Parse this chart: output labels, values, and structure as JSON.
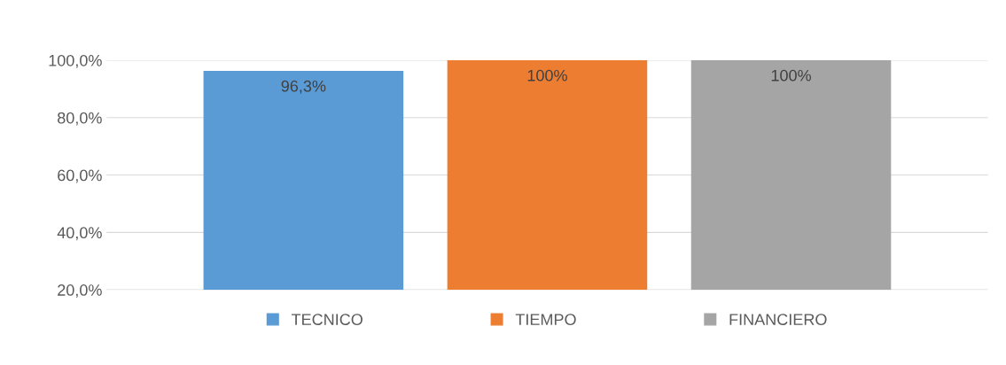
{
  "chart_data": {
    "type": "bar",
    "categories": [
      null
    ],
    "series": [
      {
        "name": "TECNICO",
        "color": "#5b9bd5",
        "values": [
          96.3
        ],
        "value_labels": [
          "96,3%"
        ]
      },
      {
        "name": "TIEMPO",
        "color": "#ed7d31",
        "values": [
          100
        ],
        "value_labels": [
          "100%"
        ]
      },
      {
        "name": "FINANCIERO",
        "color": "#a5a5a5",
        "values": [
          100
        ],
        "value_labels": [
          "100%"
        ]
      }
    ],
    "ylim": [
      20,
      100
    ],
    "yticks": [
      {
        "value": 20,
        "label": "20,0%"
      },
      {
        "value": 40,
        "label": "40,0%"
      },
      {
        "value": 60,
        "label": "60,0%"
      },
      {
        "value": 80,
        "label": "80,0%"
      },
      {
        "value": 100,
        "label": "100,0%"
      }
    ],
    "grid": "y",
    "legend": "bottom",
    "tick_labels": "y"
  }
}
